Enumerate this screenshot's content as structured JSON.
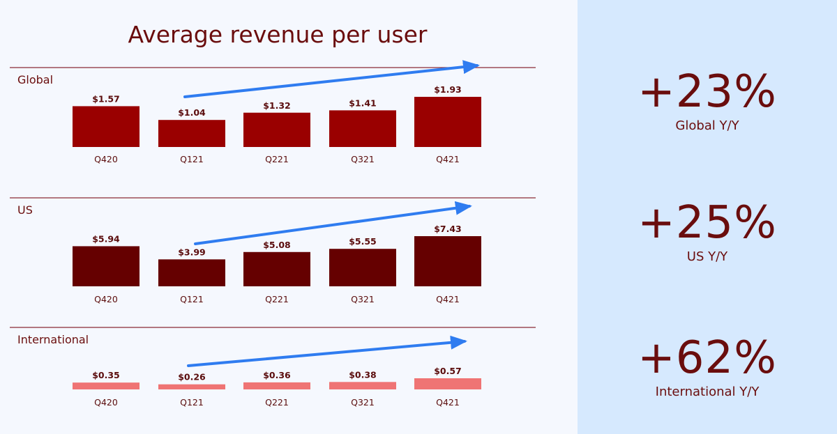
{
  "colors": {
    "title": "#6a0d0d",
    "rule": "#8a2a35",
    "arrow": "#2f7cf0",
    "label_text": "#5a0c0c",
    "global_bar": "#9a0000",
    "us_bar": "#650000",
    "intl_bar": "#ef7474"
  },
  "chart_data": {
    "type": "bar",
    "title": "Average revenue per user",
    "categories": [
      "Q420",
      "Q121",
      "Q221",
      "Q321",
      "Q421"
    ],
    "series": [
      {
        "name": "Global",
        "values": [
          1.57,
          1.04,
          1.32,
          1.41,
          1.93
        ],
        "labels": [
          "$1.57",
          "$1.04",
          "$1.32",
          "$1.41",
          "$1.93"
        ],
        "ylim": [
          0,
          2.0
        ]
      },
      {
        "name": "US",
        "values": [
          5.94,
          3.99,
          5.08,
          5.55,
          7.43
        ],
        "labels": [
          "$5.94",
          "$3.99",
          "$5.08",
          "$5.55",
          "$7.43"
        ],
        "ylim": [
          0,
          8.0
        ]
      },
      {
        "name": "International",
        "values": [
          0.35,
          0.26,
          0.36,
          0.38,
          0.57
        ],
        "labels": [
          "$0.35",
          "$0.26",
          "$0.36",
          "$0.38",
          "$0.57"
        ],
        "ylim": [
          0,
          1.6
        ]
      }
    ],
    "annotations": [
      "trend arrow from Q121 to Q421 in each panel"
    ]
  },
  "stats": [
    {
      "value": "+23%",
      "caption": "Global Y/Y"
    },
    {
      "value": "+25%",
      "caption": "US Y/Y"
    },
    {
      "value": "+62%",
      "caption": "International Y/Y"
    }
  ]
}
